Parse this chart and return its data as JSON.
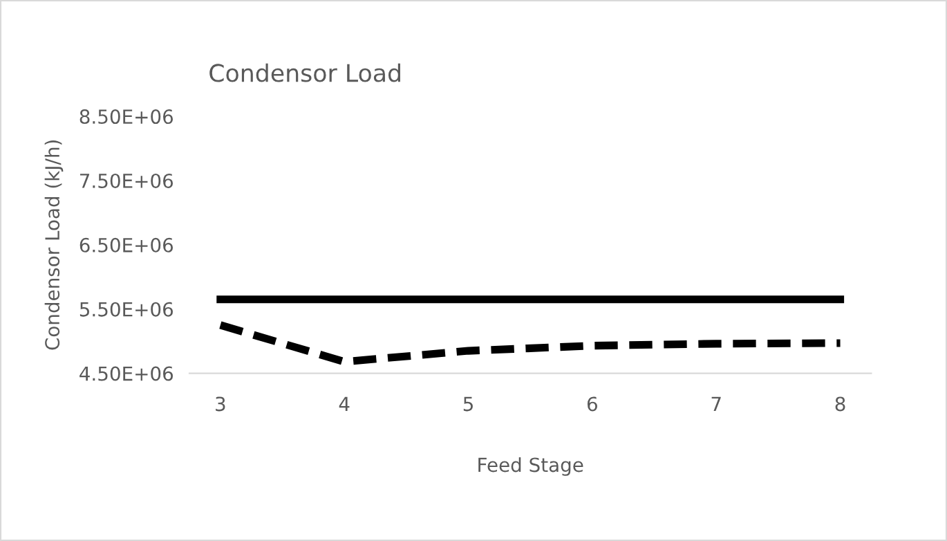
{
  "chart_data": {
    "type": "line",
    "title": "Condensor Load",
    "xlabel": "Feed Stage",
    "ylabel": "Condensor Load (kJ/h)",
    "categories": [
      "3",
      "4",
      "5",
      "6",
      "7",
      "8"
    ],
    "series": [
      {
        "color": "#000000",
        "line_style": "dashed",
        "values": [
          5250000,
          4680000,
          4850000,
          4930000,
          4960000,
          4970000
        ]
      },
      {
        "color": "#000000",
        "line_style": "solid",
        "values": [
          5650000,
          5650000,
          5650000,
          5650000,
          5650000,
          5650000
        ]
      }
    ],
    "ylim": [
      4500000,
      8500000
    ],
    "yticks": [
      {
        "value": 4500000,
        "label": "4.50E+06"
      },
      {
        "value": 5500000,
        "label": "5.50E+06"
      },
      {
        "value": 6500000,
        "label": "6.50E+06"
      },
      {
        "value": 7500000,
        "label": "7.50E+06"
      },
      {
        "value": 8500000,
        "label": "8.50E+06"
      }
    ],
    "grid": false,
    "marker": "none"
  }
}
